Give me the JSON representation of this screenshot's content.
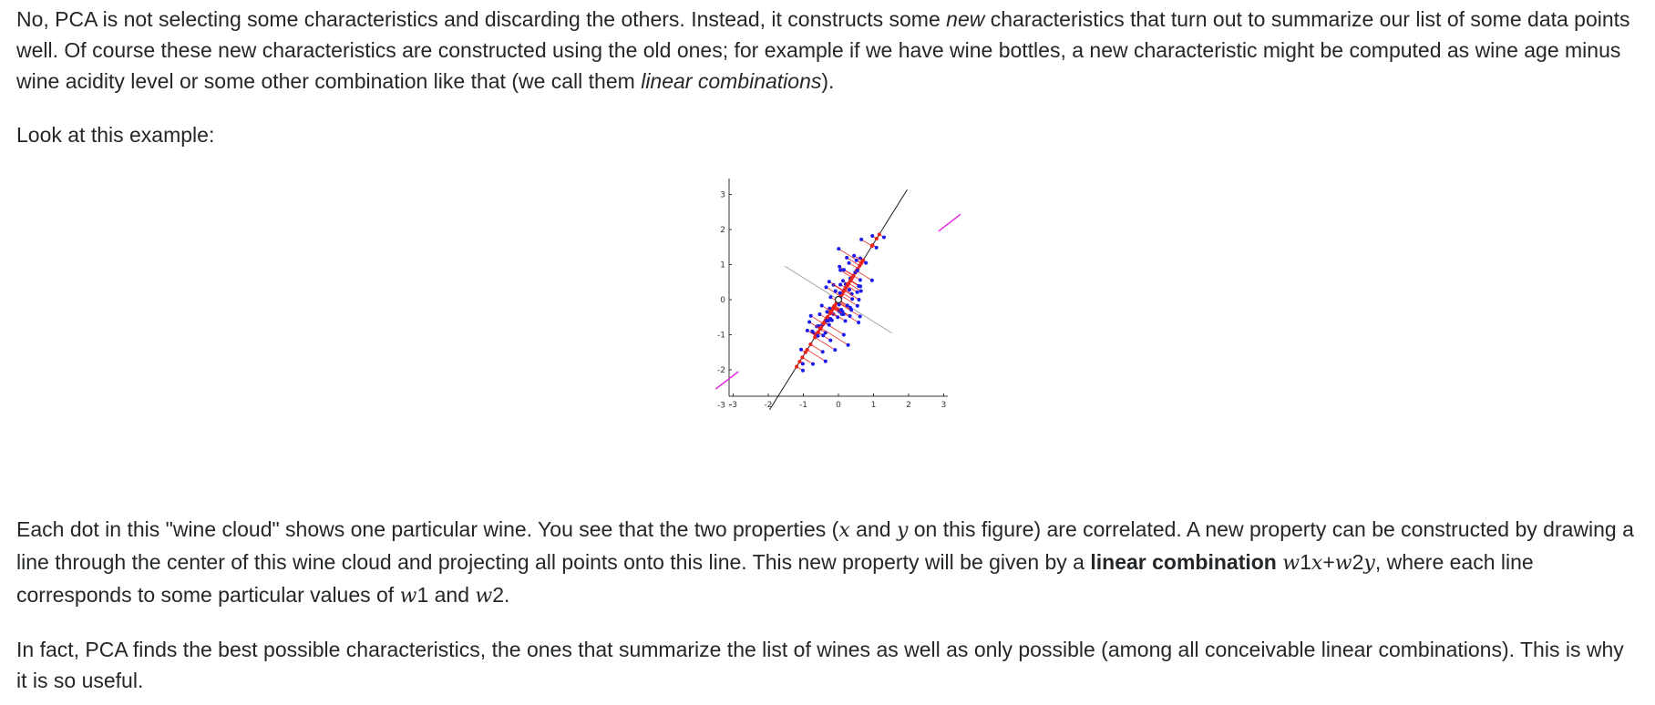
{
  "paragraph1": {
    "part1": "No, PCA is not selecting some characteristics and discarding the others. Instead, it constructs some ",
    "em1": "new",
    "part2": " characteristics that turn out to summarize our list of some data points well. Of course these new characteristics are constructed using the old ones; for example if we have wine bottles, a new characteristic might be computed as wine age minus wine acidity level or some other combination like that (we call them ",
    "em2": "linear combinations",
    "part3": ")."
  },
  "paragraph2": "Look at this example:",
  "figure": {
    "x_ticks": [
      "-3",
      "-2",
      "-1",
      "0",
      "1",
      "2",
      "3"
    ],
    "y_ticks": [
      "3",
      "2",
      "1",
      "0",
      "-1",
      "-2",
      "-3"
    ],
    "colors": {
      "points": "#1a1aee",
      "projections": "#e8251c",
      "principal_axis": "#222222",
      "perpendicular_axis": "#999999",
      "marker": "#e020e0"
    }
  },
  "paragraph3": {
    "part1": "Each dot in this \"wine cloud\" shows one particular wine. You see that the two properties (",
    "x": "x",
    "and": " and ",
    "y": "y",
    "part2": " on this figure) are correlated. A new property can be constructed by drawing a line through the center of this wine cloud and projecting all points onto this line. This new property will be given by a ",
    "strong": "linear combination",
    "space": " ",
    "w1": "w",
    "one": "1",
    "x2": "x",
    "plus": "+",
    "w2": "w",
    "two": "2",
    "y2": "y",
    "part3": ", where each line corresponds to some particular values of ",
    "w1b": "w",
    "oneb": "1",
    "and2": " and ",
    "w2b": "w",
    "twob": "2",
    "end": "."
  },
  "paragraph4": "In fact, PCA finds the best possible characteristics, the ones that summarize the list of wines as well as only possible (among all conceivable linear combinations). This is why it is so useful."
}
